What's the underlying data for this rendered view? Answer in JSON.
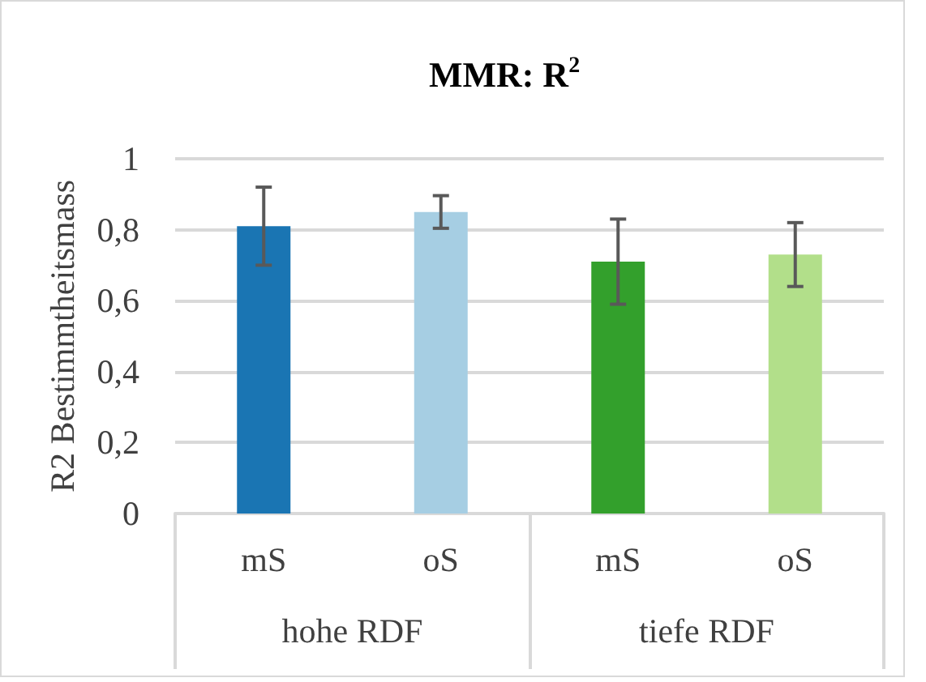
{
  "chart_data": {
    "type": "bar",
    "title": "MMR: R$^{2}$",
    "ylabel": "R2 Bestimmtheitsmass",
    "categories": [
      "mS",
      "oS",
      "mS",
      "oS"
    ],
    "values": [
      0.81,
      0.85,
      0.71,
      0.73
    ],
    "errors": [
      0.11,
      0.046,
      0.12,
      0.09
    ],
    "colors": [
      "#1a75b3",
      "#a6cee3",
      "#33a02c",
      "#b2df8a"
    ],
    "annotations": [
      "hohe RDF",
      "tiefe RDF"
    ],
    "ylim": [
      0,
      1
    ],
    "yticks": [
      0,
      {
        "value": 0.2,
        "label": "0,2"
      },
      {
        "value": 0.4,
        "label": "0,4"
      },
      {
        "value": 0.6,
        "label": "0,6"
      },
      {
        "value": 0.8,
        "label": "0,8"
      },
      1
    ],
    "grid": "y"
  }
}
